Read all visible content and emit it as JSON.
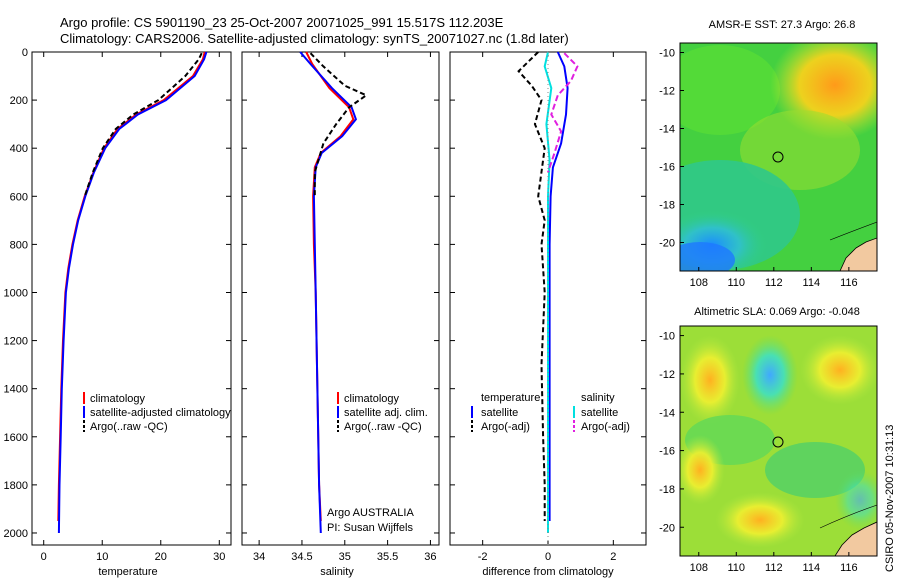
{
  "title": {
    "line1": "Argo profile: CS 5901190_23 25-Oct-2007 20071025_991 15.517S 112.203E",
    "line2": "Climatology: CARS2006. Satellite-adjusted climatology: synTS_20071027.nc (1.8d later)"
  },
  "footer": "CSIRO 05-Nov-2007 10:31:13",
  "colors": {
    "climatology": "#ff0000",
    "satellite": "#0000ff",
    "argo": "#000000",
    "sal_sat": "#00e0e0",
    "sal_argo": "#e020e0"
  },
  "chart_data": [
    {
      "type": "line",
      "name": "temperature",
      "xlabel": "temperature",
      "ylabel": "",
      "xlim": [
        -2,
        32
      ],
      "ylim": [
        2050,
        0
      ],
      "xticks": [
        "0",
        "10",
        "20",
        "30"
      ],
      "yticks": [
        "0",
        "200",
        "400",
        "600",
        "800",
        "1000",
        "1200",
        "1400",
        "1600",
        "1800",
        "2000"
      ],
      "legend": [
        "climatology",
        "satellite-adjusted climatology",
        "Argo(..raw -QC)"
      ],
      "series": [
        {
          "name": "climatology",
          "x": [
            27.5,
            27.2,
            25.5,
            20.5,
            15.8,
            12.6,
            10.3,
            8.5,
            7.0,
            5.8,
            4.9,
            4.2,
            3.7,
            3.3,
            3.0,
            2.8,
            2.6,
            2.5
          ],
          "y": [
            0,
            30,
            100,
            200,
            260,
            320,
            400,
            500,
            600,
            700,
            800,
            900,
            1000,
            1200,
            1400,
            1600,
            1800,
            1950
          ]
        },
        {
          "name": "satellite-adjusted climatology",
          "x": [
            27.8,
            27.4,
            25.8,
            20.9,
            16.1,
            12.9,
            10.5,
            8.6,
            7.1,
            5.9,
            5.0,
            4.3,
            3.8,
            3.4,
            3.1,
            2.9,
            2.7,
            2.6
          ],
          "y": [
            0,
            30,
            100,
            200,
            260,
            320,
            400,
            500,
            600,
            700,
            800,
            900,
            1000,
            1200,
            1400,
            1600,
            1800,
            2000
          ]
        },
        {
          "name": "Argo(..raw -QC)",
          "x": [
            27.0,
            26.5,
            24.2,
            19.6,
            15.3,
            12.3,
            10.1,
            8.4,
            7.0
          ],
          "y": [
            5,
            30,
            100,
            200,
            260,
            320,
            400,
            500,
            600
          ]
        }
      ]
    },
    {
      "type": "line",
      "name": "salinity",
      "xlabel": "salinity",
      "xlim": [
        33.8,
        36.1
      ],
      "ylim": [
        2050,
        0
      ],
      "xticks": [
        "34",
        "34.5",
        "35",
        "35.5",
        "36"
      ],
      "legend": [
        "climatology",
        "satellite adj. clim.",
        "Argo(..raw -QC)"
      ],
      "series": [
        {
          "name": "climatology",
          "x": [
            34.55,
            34.62,
            34.82,
            35.05,
            35.1,
            34.95,
            34.72,
            34.65,
            34.63,
            34.64,
            34.66,
            34.68,
            34.7,
            34.72
          ],
          "y": [
            0,
            50,
            150,
            230,
            280,
            350,
            420,
            480,
            600,
            800,
            1000,
            1400,
            1800,
            1950
          ]
        },
        {
          "name": "satellite adj. clim.",
          "x": [
            34.48,
            34.6,
            34.85,
            35.08,
            35.13,
            34.97,
            34.73,
            34.66,
            34.64,
            34.65,
            34.66,
            34.68,
            34.7,
            34.72
          ],
          "y": [
            0,
            50,
            150,
            230,
            280,
            350,
            420,
            480,
            600,
            800,
            1000,
            1400,
            1800,
            2000
          ]
        },
        {
          "name": "Argo(..raw -QC)",
          "x": [
            34.6,
            34.75,
            35.0,
            35.25,
            35.05,
            34.9,
            34.75,
            34.7,
            34.65,
            34.65
          ],
          "y": [
            5,
            60,
            140,
            180,
            230,
            300,
            380,
            440,
            500,
            600
          ]
        }
      ],
      "annotation": [
        "Argo AUSTRALIA",
        "PI: Susan Wijffels"
      ]
    },
    {
      "type": "line",
      "name": "difference",
      "xlabel": "difference from climatology",
      "xlim": [
        -3,
        3
      ],
      "ylim": [
        2050,
        0
      ],
      "xticks": [
        "-2",
        "0",
        "2"
      ],
      "legend_groups": {
        "temperature": [
          "satellite",
          "Argo(-adj)"
        ],
        "salinity": [
          "satellite",
          "Argo(-adj)"
        ]
      },
      "series": [
        {
          "name": "temperature satellite",
          "x": [
            0.3,
            0.5,
            0.6,
            0.55,
            0.4,
            0.15,
            0.08,
            0.05,
            0.05,
            0.05,
            0.05,
            0.05
          ],
          "y": [
            0,
            60,
            150,
            260,
            380,
            480,
            600,
            800,
            1200,
            1600,
            1800,
            1950
          ]
        },
        {
          "name": "temperature Argo(-adj)",
          "x": [
            -0.3,
            -0.9,
            -0.5,
            -0.2,
            -0.4,
            -0.1,
            -0.3,
            -0.1,
            -0.2,
            -0.1,
            -0.2,
            -0.15,
            -0.1,
            -0.1
          ],
          "y": [
            0,
            80,
            140,
            200,
            300,
            400,
            600,
            700,
            800,
            1000,
            1300,
            1600,
            1800,
            1950
          ]
        },
        {
          "name": "salinity satellite",
          "x": [
            0.0,
            -0.1,
            0.1,
            -0.05,
            0.05,
            0.0,
            0.0,
            0.0,
            0.0
          ],
          "y": [
            0,
            60,
            150,
            300,
            450,
            600,
            1000,
            1600,
            2000
          ]
        },
        {
          "name": "salinity Argo(-adj)",
          "x": [
            0.5,
            0.9,
            0.7,
            0.3,
            0.1,
            0.4,
            0.2,
            0.0
          ],
          "y": [
            5,
            60,
            120,
            180,
            260,
            330,
            420,
            500
          ]
        }
      ]
    },
    {
      "type": "heatmap",
      "title": "AMSR-E SST: 27.3 Argo: 26.8",
      "xlim": [
        107,
        117.5
      ],
      "ylim": [
        -21.5,
        -9.5
      ],
      "xticks": [
        "108",
        "110",
        "112",
        "114",
        "116"
      ],
      "yticks": [
        "-10",
        "-12",
        "-14",
        "-16",
        "-18",
        "-20"
      ],
      "marker": [
        112.2,
        -15.5
      ]
    },
    {
      "type": "heatmap",
      "title": "Altimetric SLA: 0.069 Argo: -0.048",
      "xlim": [
        107,
        117.5
      ],
      "ylim": [
        -21.5,
        -9.5
      ],
      "xticks": [
        "108",
        "110",
        "112",
        "114",
        "116"
      ],
      "yticks": [
        "-10",
        "-12",
        "-14",
        "-16",
        "-18",
        "-20"
      ],
      "marker": [
        112.2,
        -15.5
      ]
    }
  ]
}
